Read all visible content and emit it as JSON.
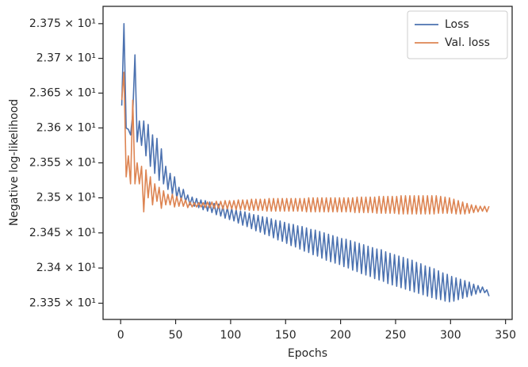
{
  "chart_data": {
    "type": "line",
    "x_label": "Epochs",
    "y_label": "Negative log-likelihood",
    "yscale": "log",
    "legend": "upper right",
    "xlim": [
      -16,
      356
    ],
    "xticks": [
      0,
      50,
      100,
      150,
      200,
      250,
      300,
      350
    ],
    "ylim": [
      23.327,
      23.775
    ],
    "yticks": [
      {
        "value": 23.35,
        "label": "2.335 × 10¹"
      },
      {
        "value": 23.4,
        "label": "2.34 × 10¹"
      },
      {
        "value": 23.45,
        "label": "2.345 × 10¹"
      },
      {
        "value": 23.5,
        "label": "2.35 × 10¹"
      },
      {
        "value": 23.55,
        "label": "2.355 × 10¹"
      },
      {
        "value": 23.6,
        "label": "2.36 × 10¹"
      },
      {
        "value": 23.65,
        "label": "2.365 × 10¹"
      },
      {
        "value": 23.7,
        "label": "2.37 × 10¹"
      },
      {
        "value": 23.75,
        "label": "2.375 × 10¹"
      }
    ],
    "x": [
      1,
      3,
      5,
      7,
      9,
      11,
      13,
      15,
      17,
      19,
      21,
      23,
      25,
      27,
      29,
      31,
      33,
      35,
      37,
      39,
      41,
      43,
      45,
      47,
      49,
      51,
      53,
      55,
      57,
      59,
      61,
      63,
      65,
      67,
      69,
      71,
      73,
      75,
      77,
      79,
      81,
      83,
      85,
      87,
      89,
      91,
      93,
      95,
      97,
      99,
      101,
      103,
      105,
      107,
      109,
      111,
      113,
      115,
      117,
      119,
      121,
      123,
      125,
      127,
      129,
      131,
      133,
      135,
      137,
      139,
      141,
      143,
      145,
      147,
      149,
      151,
      153,
      155,
      157,
      159,
      161,
      163,
      165,
      167,
      169,
      171,
      173,
      175,
      177,
      179,
      181,
      183,
      185,
      187,
      189,
      191,
      193,
      195,
      197,
      199,
      201,
      203,
      205,
      207,
      209,
      211,
      213,
      215,
      217,
      219,
      221,
      223,
      225,
      227,
      229,
      231,
      233,
      235,
      237,
      239,
      241,
      243,
      245,
      247,
      249,
      251,
      253,
      255,
      257,
      259,
      261,
      263,
      265,
      267,
      269,
      271,
      273,
      275,
      277,
      279,
      281,
      283,
      285,
      287,
      289,
      291,
      293,
      295,
      297,
      299,
      301,
      303,
      305,
      307,
      309,
      311,
      313,
      315,
      317,
      319,
      321,
      323,
      325,
      327,
      329,
      331,
      333,
      335
    ],
    "series": [
      {
        "name": "Loss",
        "color": "#4c72b0",
        "values": [
          23.632,
          23.75,
          23.6,
          23.598,
          23.59,
          23.62,
          23.705,
          23.58,
          23.61,
          23.575,
          23.61,
          23.56,
          23.605,
          23.545,
          23.59,
          23.535,
          23.585,
          23.525,
          23.57,
          23.52,
          23.545,
          23.512,
          23.535,
          23.505,
          23.53,
          23.5,
          23.515,
          23.497,
          23.512,
          23.495,
          23.504,
          23.49,
          23.501,
          23.488,
          23.499,
          23.486,
          23.497,
          23.483,
          23.496,
          23.481,
          23.494,
          23.479,
          23.492,
          23.476,
          23.491,
          23.474,
          23.488,
          23.471,
          23.486,
          23.469,
          23.485,
          23.467,
          23.483,
          23.464,
          23.481,
          23.461,
          23.48,
          23.459,
          23.478,
          23.456,
          23.476,
          23.453,
          23.475,
          23.451,
          23.473,
          23.448,
          23.472,
          23.446,
          23.47,
          23.443,
          23.468,
          23.44,
          23.467,
          23.438,
          23.465,
          23.435,
          23.463,
          23.432,
          23.462,
          23.43,
          23.46,
          23.427,
          23.459,
          23.424,
          23.457,
          23.422,
          23.455,
          23.419,
          23.454,
          23.417,
          23.452,
          23.414,
          23.45,
          23.411,
          23.448,
          23.409,
          23.446,
          23.407,
          23.444,
          23.405,
          23.442,
          23.402,
          23.441,
          23.4,
          23.439,
          23.397,
          23.437,
          23.395,
          23.435,
          23.392,
          23.433,
          23.39,
          23.431,
          23.388,
          23.429,
          23.385,
          23.427,
          23.383,
          23.426,
          23.381,
          23.423,
          23.378,
          23.421,
          23.376,
          23.419,
          23.374,
          23.417,
          23.372,
          23.415,
          23.37,
          23.413,
          23.368,
          23.411,
          23.366,
          23.408,
          23.364,
          23.406,
          23.362,
          23.403,
          23.36,
          23.401,
          23.358,
          23.399,
          23.356,
          23.396,
          23.355,
          23.393,
          23.353,
          23.391,
          23.352,
          23.388,
          23.353,
          23.386,
          23.355,
          23.384,
          23.357,
          23.382,
          23.359,
          23.38,
          23.361,
          23.377,
          23.363,
          23.375,
          23.365,
          23.373,
          23.365,
          23.369,
          23.36
        ]
      },
      {
        "name": "Val. loss",
        "color": "#dd8452",
        "values": [
          23.64,
          23.68,
          23.53,
          23.56,
          23.52,
          23.64,
          23.52,
          23.55,
          23.52,
          23.545,
          23.48,
          23.54,
          23.5,
          23.53,
          23.49,
          23.52,
          23.495,
          23.515,
          23.485,
          23.51,
          23.49,
          23.505,
          23.49,
          23.505,
          23.487,
          23.502,
          23.488,
          23.5,
          23.488,
          23.497,
          23.486,
          23.494,
          23.487,
          23.493,
          23.487,
          23.493,
          23.487,
          23.493,
          23.486,
          23.494,
          23.486,
          23.494,
          23.485,
          23.495,
          23.485,
          23.495,
          23.484,
          23.496,
          23.484,
          23.496,
          23.484,
          23.496,
          23.483,
          23.497,
          23.483,
          23.497,
          23.483,
          23.497,
          23.482,
          23.498,
          23.482,
          23.498,
          23.482,
          23.498,
          23.482,
          23.498,
          23.481,
          23.499,
          23.481,
          23.499,
          23.481,
          23.499,
          23.481,
          23.499,
          23.481,
          23.499,
          23.481,
          23.499,
          23.481,
          23.499,
          23.481,
          23.499,
          23.481,
          23.499,
          23.48,
          23.5,
          23.48,
          23.5,
          23.48,
          23.5,
          23.48,
          23.5,
          23.48,
          23.5,
          23.48,
          23.5,
          23.48,
          23.5,
          23.48,
          23.5,
          23.48,
          23.5,
          23.48,
          23.5,
          23.48,
          23.5,
          23.479,
          23.501,
          23.479,
          23.501,
          23.479,
          23.501,
          23.479,
          23.501,
          23.479,
          23.501,
          23.478,
          23.502,
          23.478,
          23.502,
          23.478,
          23.502,
          23.478,
          23.502,
          23.478,
          23.502,
          23.477,
          23.503,
          23.477,
          23.503,
          23.477,
          23.503,
          23.477,
          23.503,
          23.477,
          23.503,
          23.477,
          23.503,
          23.477,
          23.503,
          23.477,
          23.503,
          23.477,
          23.503,
          23.478,
          23.502,
          23.478,
          23.501,
          23.478,
          23.5,
          23.478,
          23.498,
          23.477,
          23.496,
          23.477,
          23.494,
          23.477,
          23.492,
          23.478,
          23.49,
          23.479,
          23.489,
          23.48,
          23.488,
          23.481,
          23.488,
          23.48,
          23.488
        ]
      }
    ]
  }
}
